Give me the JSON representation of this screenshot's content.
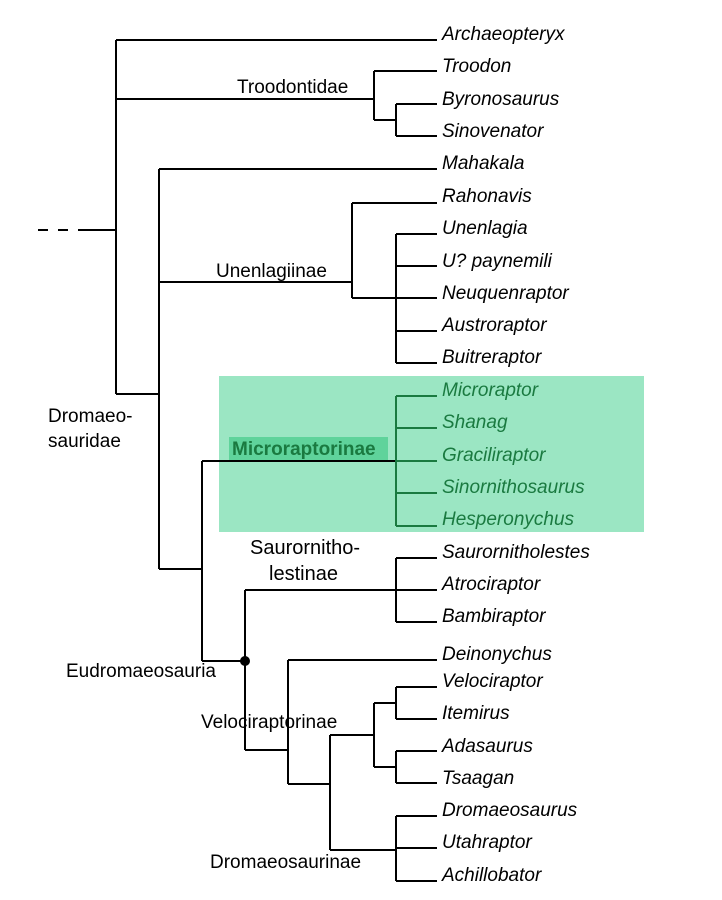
{
  "taxa": {
    "archaeopteryx": "Archaeopteryx",
    "troodon": "Troodon",
    "byronosaurus": "Byronosaurus",
    "sinovenator": "Sinovenator",
    "mahakala": "Mahakala",
    "rahonavis": "Rahonavis",
    "unenlagia": "Unenlagia",
    "u_paynemili": "U? paynemili",
    "neuquenraptor": "Neuquenraptor",
    "austroraptor": "Austroraptor",
    "buitreraptor": "Buitreraptor",
    "microraptor": "Microraptor",
    "shanag": "Shanag",
    "graciliraptor": "Graciliraptor",
    "sinornithosaurus": "Sinornithosaurus",
    "hesperonychus": "Hesperonychus",
    "saurornitholestes": "Saurornitholestes",
    "atrociraptor": "Atrociraptor",
    "bambiraptor": "Bambiraptor",
    "deinonychus": "Deinonychus",
    "velociraptor": "Velociraptor",
    "itemirus": "Itemirus",
    "adasaurus": "Adasaurus",
    "tsaagan": "Tsaagan",
    "dromaeosaurus": "Dromaeosaurus",
    "utahraptor": "Utahraptor",
    "achillobator": "Achillobator"
  },
  "clades": {
    "troodontidae": "Troodontidae",
    "unenlagiinae": "Unenlagiinae",
    "dromaeosauridae_1": "Dromaeo-",
    "dromaeosauridae_2": "sauridae",
    "microraptorinae": "Microraptorinae",
    "saurornitholestinae_1": "Saurornitho-",
    "saurornitholestinae_2": "lestinae",
    "eudromaeosauria": "Eudromaeosauria",
    "velociraptorinae": "Velociraptorinae",
    "dromaeosaurinae": "Dromaeosaurinae"
  },
  "colors": {
    "highlight_fill": "#9be6c3",
    "highlight_text": "#1a7a40",
    "line": "#000000"
  }
}
